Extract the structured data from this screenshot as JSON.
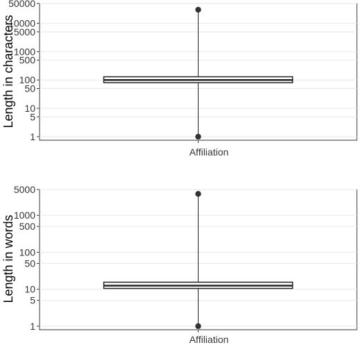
{
  "chart_data": [
    {
      "type": "boxplot",
      "title": "",
      "xlabel": "",
      "ylabel": "Length in characters",
      "yscale": "log10",
      "ylim": [
        0.75,
        50000
      ],
      "yticks": [
        1,
        5,
        10,
        50,
        100,
        500,
        1000,
        5000,
        10000,
        50000
      ],
      "ytick_labels": [
        "1",
        "5",
        "10",
        "50",
        "100",
        "500",
        "1000",
        "5000",
        "10000",
        "50000"
      ],
      "categories": [
        "Affiliation"
      ],
      "boxes": [
        {
          "category": "Affiliation",
          "q1": 80,
          "median": 100,
          "q3": 130,
          "whisker_low": 1,
          "whisker_high": 30000
        }
      ],
      "outliers": [
        {
          "category": "Affiliation",
          "y": 30000
        },
        {
          "category": "Affiliation",
          "y": 1
        }
      ],
      "grid": true,
      "colors": {
        "box_fill": "#ffffff",
        "box_stroke": "#222222",
        "grid": "#ebebeb",
        "point": "#333333"
      }
    },
    {
      "type": "boxplot",
      "title": "",
      "xlabel": "",
      "ylabel": "Length in words",
      "yscale": "log10",
      "ylim": [
        0.8,
        5000
      ],
      "yticks": [
        1,
        5,
        10,
        50,
        100,
        500,
        1000,
        5000
      ],
      "ytick_labels": [
        "1",
        "5",
        "10",
        "50",
        "100",
        "500",
        "1000",
        "5000"
      ],
      "categories": [
        "Affiliation"
      ],
      "boxes": [
        {
          "category": "Affiliation",
          "q1": 10.5,
          "median": 12.5,
          "q3": 15.5,
          "whisker_low": 1,
          "whisker_high": 3800
        }
      ],
      "outliers": [
        {
          "category": "Affiliation",
          "y": 3800
        },
        {
          "category": "Affiliation",
          "y": 1
        }
      ],
      "grid": true,
      "colors": {
        "box_fill": "#ffffff",
        "box_stroke": "#222222",
        "grid": "#ebebeb",
        "point": "#333333"
      }
    }
  ]
}
